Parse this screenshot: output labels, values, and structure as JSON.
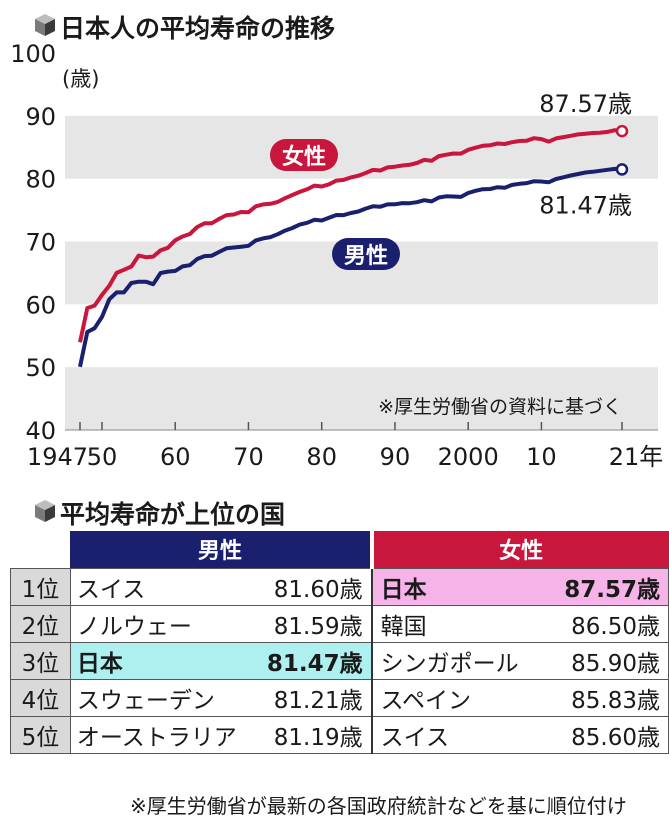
{
  "titles": {
    "chart_title": "日本人の平均寿命の推移",
    "table_title": "平均寿命が上位の国"
  },
  "colors": {
    "male": "#1a1f6e",
    "female": "#c8163c",
    "band": "#e6e6e6",
    "japan_male_highlight": "#aeeff0",
    "japan_female_highlight": "#f6b3e8",
    "rank_column": "#d9d9d9"
  },
  "chart_data": {
    "type": "line",
    "title": "日本人の平均寿命の推移",
    "ylabel": "(歳)",
    "xlabel": "",
    "ylim": [
      40,
      100
    ],
    "yticks": [
      40,
      50,
      60,
      70,
      80,
      90,
      100
    ],
    "xlim": [
      1947,
      2021
    ],
    "xticks": [
      {
        "value": 1947,
        "label": "1947"
      },
      {
        "value": 1950,
        "label": "50"
      },
      {
        "value": 1960,
        "label": "60"
      },
      {
        "value": 1970,
        "label": "70"
      },
      {
        "value": 1980,
        "label": "80"
      },
      {
        "value": 1990,
        "label": "90"
      },
      {
        "value": 2000,
        "label": "2000"
      },
      {
        "value": 2010,
        "label": "10"
      },
      {
        "value": 2021,
        "label": "21年"
      }
    ],
    "grid": "alternating horizontal bands",
    "series": [
      {
        "name": "女性",
        "color": "#c8163c",
        "end_label": "87.57歳",
        "points": [
          [
            1947,
            53.96
          ],
          [
            1948,
            59.4
          ],
          [
            1949,
            59.8
          ],
          [
            1950,
            61.5
          ],
          [
            1951,
            62.97
          ],
          [
            1952,
            65.0
          ],
          [
            1953,
            65.5
          ],
          [
            1954,
            66.0
          ],
          [
            1955,
            67.75
          ],
          [
            1956,
            67.5
          ],
          [
            1957,
            67.6
          ],
          [
            1958,
            68.6
          ],
          [
            1959,
            69.0
          ],
          [
            1960,
            70.19
          ],
          [
            1961,
            70.8
          ],
          [
            1962,
            71.2
          ],
          [
            1963,
            72.3
          ],
          [
            1964,
            72.9
          ],
          [
            1965,
            72.92
          ],
          [
            1966,
            73.6
          ],
          [
            1967,
            74.2
          ],
          [
            1968,
            74.3
          ],
          [
            1969,
            74.7
          ],
          [
            1970,
            74.66
          ],
          [
            1971,
            75.6
          ],
          [
            1972,
            75.9
          ],
          [
            1973,
            76.0
          ],
          [
            1974,
            76.3
          ],
          [
            1975,
            76.89
          ],
          [
            1976,
            77.4
          ],
          [
            1977,
            77.9
          ],
          [
            1978,
            78.3
          ],
          [
            1979,
            78.9
          ],
          [
            1980,
            78.76
          ],
          [
            1981,
            79.1
          ],
          [
            1982,
            79.7
          ],
          [
            1983,
            79.8
          ],
          [
            1984,
            80.2
          ],
          [
            1985,
            80.48
          ],
          [
            1986,
            80.9
          ],
          [
            1987,
            81.4
          ],
          [
            1988,
            81.3
          ],
          [
            1989,
            81.8
          ],
          [
            1990,
            81.9
          ],
          [
            1991,
            82.1
          ],
          [
            1992,
            82.2
          ],
          [
            1993,
            82.5
          ],
          [
            1994,
            82.98
          ],
          [
            1995,
            82.85
          ],
          [
            1996,
            83.59
          ],
          [
            1997,
            83.82
          ],
          [
            1998,
            84.01
          ],
          [
            1999,
            83.99
          ],
          [
            2000,
            84.6
          ],
          [
            2001,
            84.93
          ],
          [
            2002,
            85.23
          ],
          [
            2003,
            85.33
          ],
          [
            2004,
            85.59
          ],
          [
            2005,
            85.52
          ],
          [
            2006,
            85.81
          ],
          [
            2007,
            85.99
          ],
          [
            2008,
            86.05
          ],
          [
            2009,
            86.44
          ],
          [
            2010,
            86.3
          ],
          [
            2011,
            85.9
          ],
          [
            2012,
            86.41
          ],
          [
            2013,
            86.61
          ],
          [
            2014,
            86.83
          ],
          [
            2015,
            87.05
          ],
          [
            2016,
            87.14
          ],
          [
            2017,
            87.26
          ],
          [
            2018,
            87.32
          ],
          [
            2019,
            87.45
          ],
          [
            2020,
            87.71
          ],
          [
            2021,
            87.57
          ]
        ]
      },
      {
        "name": "男性",
        "color": "#1a1f6e",
        "end_label": "81.47歳",
        "points": [
          [
            1947,
            50.06
          ],
          [
            1948,
            55.6
          ],
          [
            1949,
            56.2
          ],
          [
            1950,
            58.0
          ],
          [
            1951,
            60.8
          ],
          [
            1952,
            61.9
          ],
          [
            1953,
            61.9
          ],
          [
            1954,
            63.4
          ],
          [
            1955,
            63.6
          ],
          [
            1956,
            63.6
          ],
          [
            1957,
            63.2
          ],
          [
            1958,
            64.98
          ],
          [
            1959,
            65.21
          ],
          [
            1960,
            65.32
          ],
          [
            1961,
            66.03
          ],
          [
            1962,
            66.23
          ],
          [
            1963,
            67.21
          ],
          [
            1964,
            67.67
          ],
          [
            1965,
            67.74
          ],
          [
            1966,
            68.35
          ],
          [
            1967,
            68.91
          ],
          [
            1968,
            69.05
          ],
          [
            1969,
            69.18
          ],
          [
            1970,
            69.31
          ],
          [
            1971,
            70.17
          ],
          [
            1972,
            70.5
          ],
          [
            1973,
            70.7
          ],
          [
            1974,
            71.16
          ],
          [
            1975,
            71.73
          ],
          [
            1976,
            72.15
          ],
          [
            1977,
            72.69
          ],
          [
            1978,
            72.97
          ],
          [
            1979,
            73.46
          ],
          [
            1980,
            73.35
          ],
          [
            1981,
            73.79
          ],
          [
            1982,
            74.22
          ],
          [
            1983,
            74.2
          ],
          [
            1984,
            74.54
          ],
          [
            1985,
            74.78
          ],
          [
            1986,
            75.23
          ],
          [
            1987,
            75.61
          ],
          [
            1988,
            75.54
          ],
          [
            1989,
            75.91
          ],
          [
            1990,
            75.92
          ],
          [
            1991,
            76.11
          ],
          [
            1992,
            76.09
          ],
          [
            1993,
            76.25
          ],
          [
            1994,
            76.57
          ],
          [
            1995,
            76.38
          ],
          [
            1996,
            77.01
          ],
          [
            1997,
            77.19
          ],
          [
            1998,
            77.16
          ],
          [
            1999,
            77.1
          ],
          [
            2000,
            77.72
          ],
          [
            2001,
            78.07
          ],
          [
            2002,
            78.32
          ],
          [
            2003,
            78.36
          ],
          [
            2004,
            78.64
          ],
          [
            2005,
            78.56
          ],
          [
            2006,
            79.0
          ],
          [
            2007,
            79.19
          ],
          [
            2008,
            79.29
          ],
          [
            2009,
            79.59
          ],
          [
            2010,
            79.55
          ],
          [
            2011,
            79.44
          ],
          [
            2012,
            79.94
          ],
          [
            2013,
            80.21
          ],
          [
            2014,
            80.5
          ],
          [
            2015,
            80.75
          ],
          [
            2016,
            80.98
          ],
          [
            2017,
            81.09
          ],
          [
            2018,
            81.25
          ],
          [
            2019,
            81.41
          ],
          [
            2020,
            81.56
          ],
          [
            2021,
            81.47
          ]
        ]
      }
    ],
    "note": "※厚生労働省の資料に基づく"
  },
  "table": {
    "headers": {
      "male": "男性",
      "female": "女性"
    },
    "rows": [
      {
        "rank": "1位",
        "male_country": "スイス",
        "male_value": "81.60歳",
        "female_country": "日本",
        "female_value": "87.57歳"
      },
      {
        "rank": "2位",
        "male_country": "ノルウェー",
        "male_value": "81.59歳",
        "female_country": "韓国",
        "female_value": "86.50歳"
      },
      {
        "rank": "3位",
        "male_country": "日本",
        "male_value": "81.47歳",
        "female_country": "シンガポール",
        "female_value": "85.90歳"
      },
      {
        "rank": "4位",
        "male_country": "スウェーデン",
        "male_value": "81.21歳",
        "female_country": "スペイン",
        "female_value": "85.83歳"
      },
      {
        "rank": "5位",
        "male_country": "オーストラリア",
        "male_value": "81.19歳",
        "female_country": "スイス",
        "female_value": "85.60歳"
      }
    ],
    "footnote": "※厚生労働省が最新の各国政府統計などを基に順位付け"
  }
}
